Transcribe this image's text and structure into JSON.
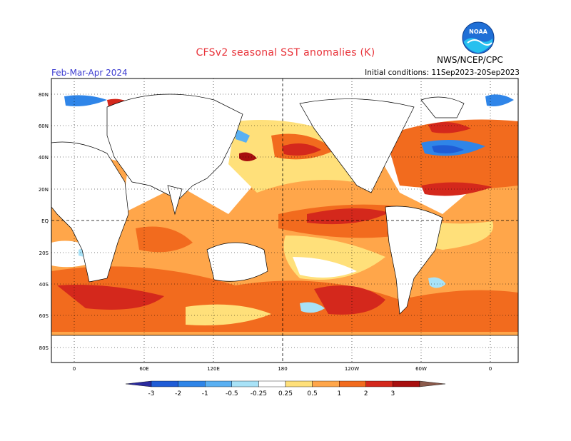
{
  "header": {
    "title": "CFSv2 seasonal SST anomalies (K)",
    "season": "Feb-Mar-Apr 2024",
    "initial_conditions": "Initial conditions: 11Sep2023-20Sep2023",
    "agency": "NWS/NCEP/CPC",
    "logo_text": "NOAA"
  },
  "map": {
    "lat_labels": [
      "80N",
      "60N",
      "40N",
      "20N",
      "EQ",
      "20S",
      "40S",
      "60S",
      "80S"
    ],
    "lon_labels": [
      "0",
      "60E",
      "120E",
      "180",
      "120W",
      "60W",
      "0"
    ]
  },
  "legend": {
    "tick_labels": [
      "-3",
      "-2",
      "-1",
      "-0.5",
      "-0.25",
      "0.25",
      "0.5",
      "1",
      "2",
      "3"
    ],
    "colors": [
      "#2a2a9e",
      "#1f5cd6",
      "#2f85e8",
      "#5ab0f2",
      "#a8e2f7",
      "#ffffff",
      "#ffe07a",
      "#ffa64a",
      "#f26b1e",
      "#d4281c",
      "#a80f0f",
      "#8b5a4b"
    ]
  },
  "colors": {
    "title": "#e8333a",
    "season": "#3a3ad0",
    "dashed_lines": "#000000"
  }
}
